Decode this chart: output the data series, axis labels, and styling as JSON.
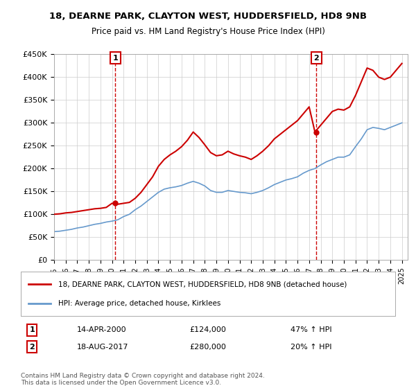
{
  "title": "18, DEARNE PARK, CLAYTON WEST, HUDDERSFIELD, HD8 9NB",
  "subtitle": "Price paid vs. HM Land Registry's House Price Index (HPI)",
  "legend_line1": "18, DEARNE PARK, CLAYTON WEST, HUDDERSFIELD, HD8 9NB (detached house)",
  "legend_line2": "HPI: Average price, detached house, Kirklees",
  "footnote": "Contains HM Land Registry data © Crown copyright and database right 2024.\nThis data is licensed under the Open Government Licence v3.0.",
  "sale1_label": "1",
  "sale1_date": "14-APR-2000",
  "sale1_price": "£124,000",
  "sale1_hpi": "47% ↑ HPI",
  "sale2_label": "2",
  "sale2_date": "18-AUG-2017",
  "sale2_price": "£280,000",
  "sale2_hpi": "20% ↑ HPI",
  "line_color_red": "#cc0000",
  "line_color_blue": "#6699cc",
  "marker_color": "#cc0000",
  "background_color": "#ffffff",
  "ylim": [
    0,
    450000
  ],
  "yticks": [
    0,
    50000,
    100000,
    150000,
    200000,
    250000,
    300000,
    350000,
    400000,
    450000
  ],
  "ytick_labels": [
    "£0",
    "£50K",
    "£100K",
    "£150K",
    "£200K",
    "£250K",
    "£300K",
    "£350K",
    "£400K",
    "£450K"
  ],
  "xlim_start": 1995.0,
  "xlim_end": 2025.5,
  "sale1_x": 2000.29,
  "sale1_y": 124000,
  "sale2_x": 2017.63,
  "sale2_y": 280000,
  "hpi_x": [
    1995,
    1995.5,
    1996,
    1996.5,
    1997,
    1997.5,
    1998,
    1998.5,
    1999,
    1999.5,
    2000,
    2000.5,
    2001,
    2001.5,
    2002,
    2002.5,
    2003,
    2003.5,
    2004,
    2004.5,
    2005,
    2005.5,
    2006,
    2006.5,
    2007,
    2007.5,
    2008,
    2008.5,
    2009,
    2009.5,
    2010,
    2010.5,
    2011,
    2011.5,
    2012,
    2012.5,
    2013,
    2013.5,
    2014,
    2014.5,
    2015,
    2015.5,
    2016,
    2016.5,
    2017,
    2017.5,
    2018,
    2018.5,
    2019,
    2019.5,
    2020,
    2020.5,
    2021,
    2021.5,
    2022,
    2022.5,
    2023,
    2023.5,
    2024,
    2024.5,
    2025
  ],
  "hpi_y": [
    62000,
    63000,
    65000,
    67000,
    70000,
    72000,
    75000,
    78000,
    80000,
    83000,
    85000,
    88000,
    95000,
    100000,
    110000,
    118000,
    128000,
    138000,
    148000,
    155000,
    158000,
    160000,
    163000,
    168000,
    172000,
    168000,
    162000,
    152000,
    148000,
    148000,
    152000,
    150000,
    148000,
    147000,
    145000,
    148000,
    152000,
    158000,
    165000,
    170000,
    175000,
    178000,
    182000,
    190000,
    196000,
    200000,
    208000,
    215000,
    220000,
    225000,
    225000,
    230000,
    248000,
    265000,
    285000,
    290000,
    288000,
    285000,
    290000,
    295000,
    300000
  ],
  "price_x": [
    1995,
    1995.5,
    1996,
    1996.5,
    1997,
    1997.5,
    1998,
    1998.5,
    1999,
    1999.5,
    2000,
    2000.5,
    2001,
    2001.5,
    2002,
    2002.5,
    2003,
    2003.5,
    2004,
    2004.5,
    2005,
    2005.5,
    2006,
    2006.5,
    2007,
    2007.5,
    2008,
    2008.5,
    2009,
    2009.5,
    2010,
    2010.5,
    2011,
    2011.5,
    2012,
    2012.5,
    2013,
    2013.5,
    2014,
    2014.5,
    2015,
    2015.5,
    2016,
    2016.5,
    2017,
    2017.5,
    2018,
    2018.5,
    2019,
    2019.5,
    2020,
    2020.5,
    2021,
    2021.5,
    2022,
    2022.5,
    2023,
    2023.5,
    2024,
    2024.5,
    2025
  ],
  "price_y": [
    100000,
    101000,
    103000,
    104000,
    106000,
    108000,
    110000,
    112000,
    113000,
    115000,
    124000,
    122000,
    124000,
    126000,
    135000,
    148000,
    165000,
    182000,
    205000,
    220000,
    230000,
    238000,
    248000,
    262000,
    280000,
    268000,
    252000,
    235000,
    228000,
    230000,
    238000,
    232000,
    228000,
    225000,
    220000,
    228000,
    238000,
    250000,
    265000,
    275000,
    285000,
    295000,
    305000,
    320000,
    335000,
    280000,
    295000,
    310000,
    325000,
    330000,
    328000,
    335000,
    360000,
    390000,
    420000,
    415000,
    400000,
    395000,
    400000,
    415000,
    430000
  ]
}
